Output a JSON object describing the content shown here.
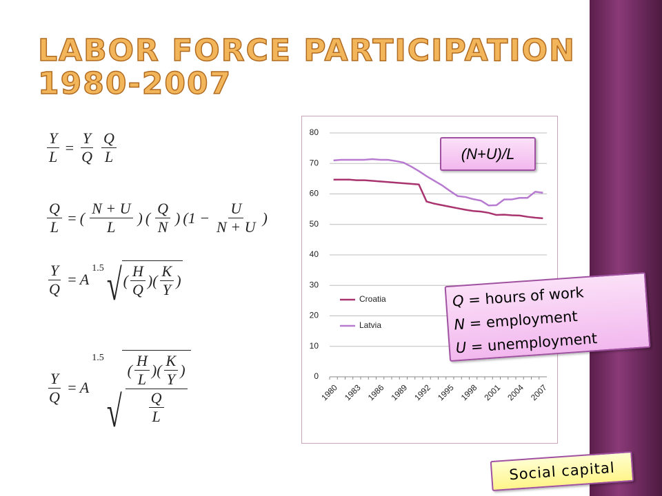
{
  "title": [
    "LABOR FORCE PARTICIPATION",
    "1980-2007"
  ],
  "equations": [
    [
      {
        "frac": [
          [
            "Y"
          ],
          [
            "L"
          ]
        ]
      },
      "=",
      {
        "frac": [
          [
            "Y"
          ],
          [
            "Q"
          ]
        ]
      },
      {
        "frac": [
          [
            "Q"
          ],
          [
            "L"
          ]
        ]
      }
    ],
    [
      {
        "frac": [
          [
            "Q"
          ],
          [
            "L"
          ]
        ]
      },
      "=",
      "(",
      {
        "frac": [
          [
            "N + U"
          ],
          [
            "L"
          ]
        ]
      },
      ")",
      "(",
      {
        "frac": [
          [
            "Q"
          ],
          [
            "N"
          ]
        ]
      },
      ")",
      "(1 −",
      {
        "frac": [
          [
            "U"
          ],
          [
            "N + U"
          ]
        ]
      },
      ")"
    ],
    [
      {
        "frac": [
          [
            "Y"
          ],
          [
            "Q"
          ]
        ]
      },
      "=",
      "A",
      {
        "sup": "1.5"
      },
      {
        "sqrt": [
          "(",
          {
            "frac": [
              [
                "H"
              ],
              [
                "Q"
              ]
            ]
          },
          ")",
          "(",
          {
            "frac": [
              [
                "K"
              ],
              [
                "Y"
              ]
            ]
          },
          ")"
        ]
      }
    ],
    [
      {
        "frac": [
          [
            "Y"
          ],
          [
            "Q"
          ]
        ]
      },
      "=",
      "A",
      {
        "sup": "1.5"
      },
      {
        "sqrt": [
          {
            "frac": [
              [
                "(",
                {
                  "frac": [
                    [
                      "H"
                    ],
                    [
                      "L"
                    ]
                  ]
                },
                ")",
                "(",
                {
                  "frac": [
                    [
                      "K"
                    ],
                    [
                      "Y"
                    ]
                  ]
                },
                ")"
              ],
              [
                {
                  "frac": [
                    [
                      "Q"
                    ],
                    [
                      "L"
                    ]
                  ]
                }
              ]
            ]
          }
        ]
      }
    ]
  ],
  "chart_data": {
    "type": "line",
    "categories": [
      "1980",
      null,
      null,
      "1983",
      null,
      null,
      "1986",
      null,
      null,
      "1989",
      null,
      null,
      "1992",
      null,
      null,
      "1995",
      null,
      null,
      "1998",
      null,
      null,
      "2001",
      null,
      null,
      "2004",
      null,
      null,
      "2007"
    ],
    "series": [
      {
        "name": "Croatia",
        "color": "#a8336e",
        "values": [
          64.7,
          64.7,
          64.7,
          64.5,
          64.5,
          64.3,
          64.1,
          63.9,
          63.7,
          63.5,
          63.3,
          63.1,
          57.5,
          56.8,
          56.3,
          55.8,
          55.3,
          54.8,
          54.4,
          54.2,
          53.8,
          53.1,
          53.2,
          53.0,
          52.9,
          52.5,
          52.2,
          52.0
        ]
      },
      {
        "name": "Latvia",
        "color": "#b77ad0",
        "values": [
          71.0,
          71.2,
          71.2,
          71.2,
          71.2,
          71.4,
          71.2,
          71.2,
          70.8,
          70.3,
          69.0,
          67.5,
          65.8,
          64.3,
          62.8,
          61.0,
          59.3,
          59.0,
          58.3,
          57.8,
          56.2,
          56.3,
          58.2,
          58.2,
          58.7,
          58.7,
          60.7,
          60.4
        ]
      }
    ],
    "ylim": [
      0,
      80
    ],
    "yticks": [
      0,
      10,
      20,
      30,
      40,
      50,
      60,
      70,
      80
    ],
    "grid": true,
    "legend": "left",
    "annotation": "(N+U)/L"
  },
  "definitions": [
    {
      "symbol": "Q",
      "text": "= hours of work"
    },
    {
      "symbol": "N",
      "text": "= employment"
    },
    {
      "symbol": "U",
      "text": "= unemployment"
    }
  ],
  "footer_label": "Social capital"
}
